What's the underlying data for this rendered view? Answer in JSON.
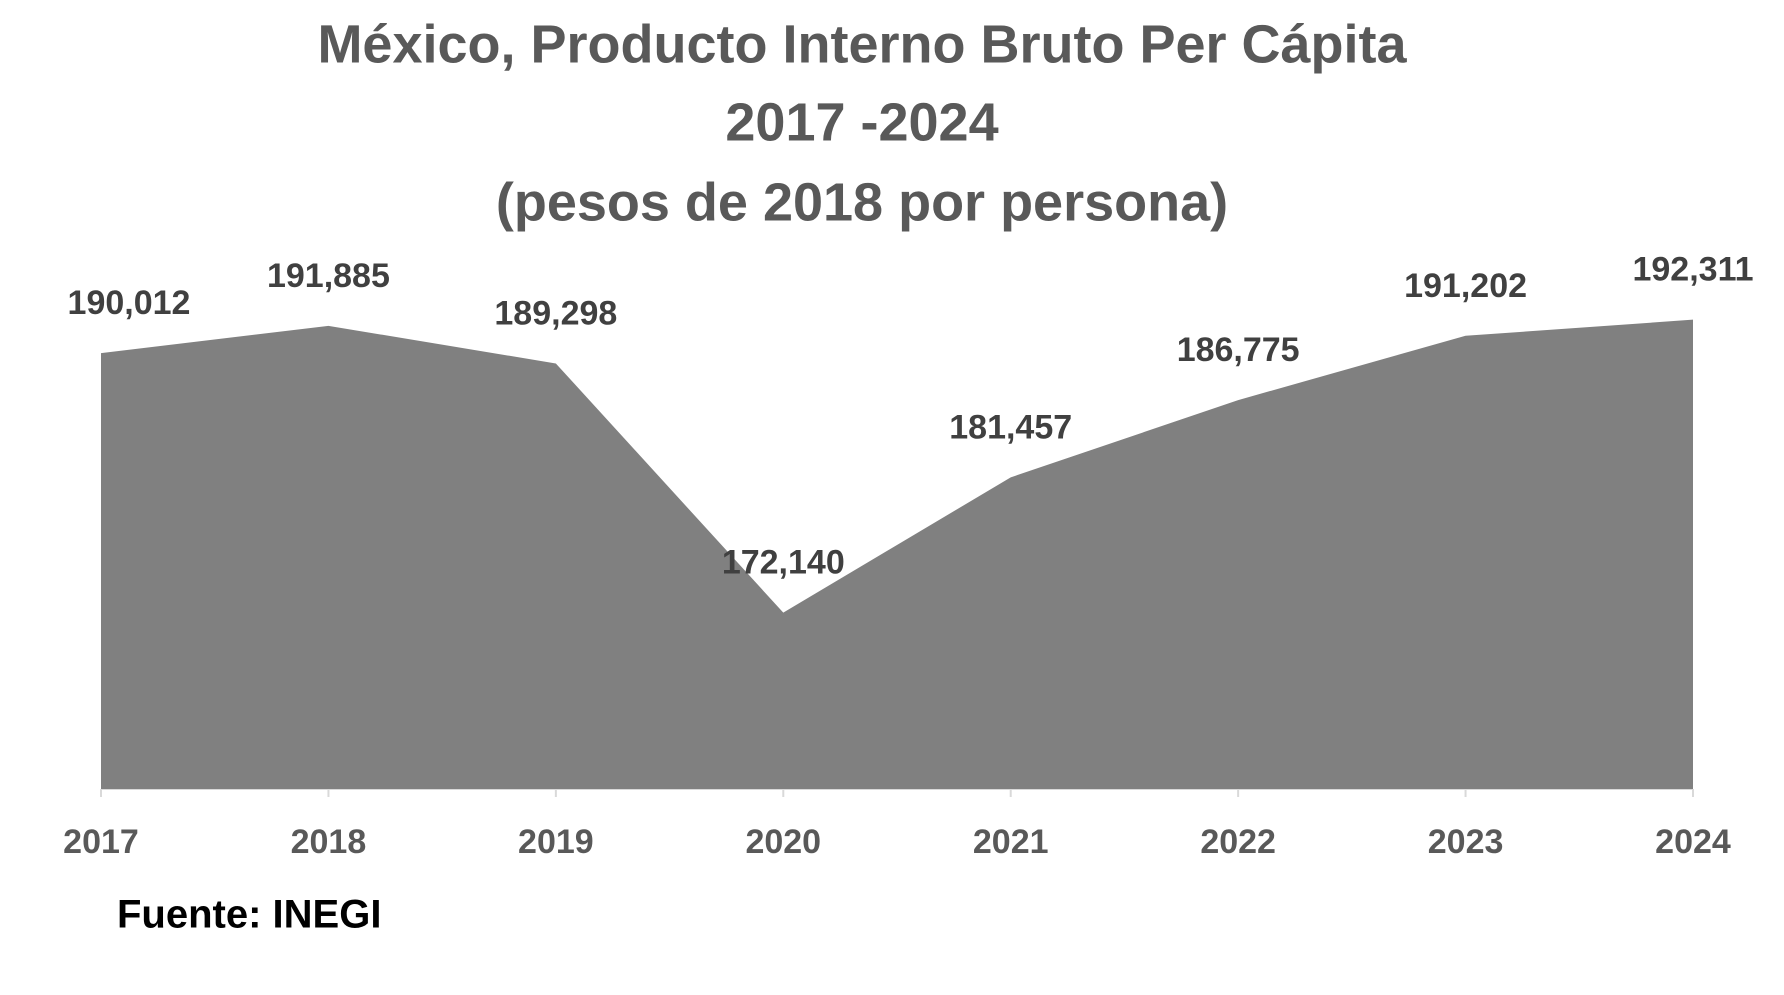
{
  "chart_data": {
    "type": "area",
    "title_lines": [
      "México, Producto Interno Bruto Per Cápita",
      "2017 -2024",
      "(pesos de 2018 por persona)"
    ],
    "categories": [
      "2017",
      "2018",
      "2019",
      "2020",
      "2021",
      "2022",
      "2023",
      "2024"
    ],
    "series": [
      {
        "color": "#808080",
        "values": [
          190012,
          191885,
          189298,
          172140,
          181457,
          186775,
          191202,
          192311
        ],
        "value_labels": [
          "190,012",
          "191,885",
          "189,298",
          "172,140",
          "181,457",
          "186,775",
          "191,202",
          "192,311"
        ]
      }
    ],
    "ylim": [
      160000,
      200000
    ],
    "source": "Fuente: INEGI"
  }
}
